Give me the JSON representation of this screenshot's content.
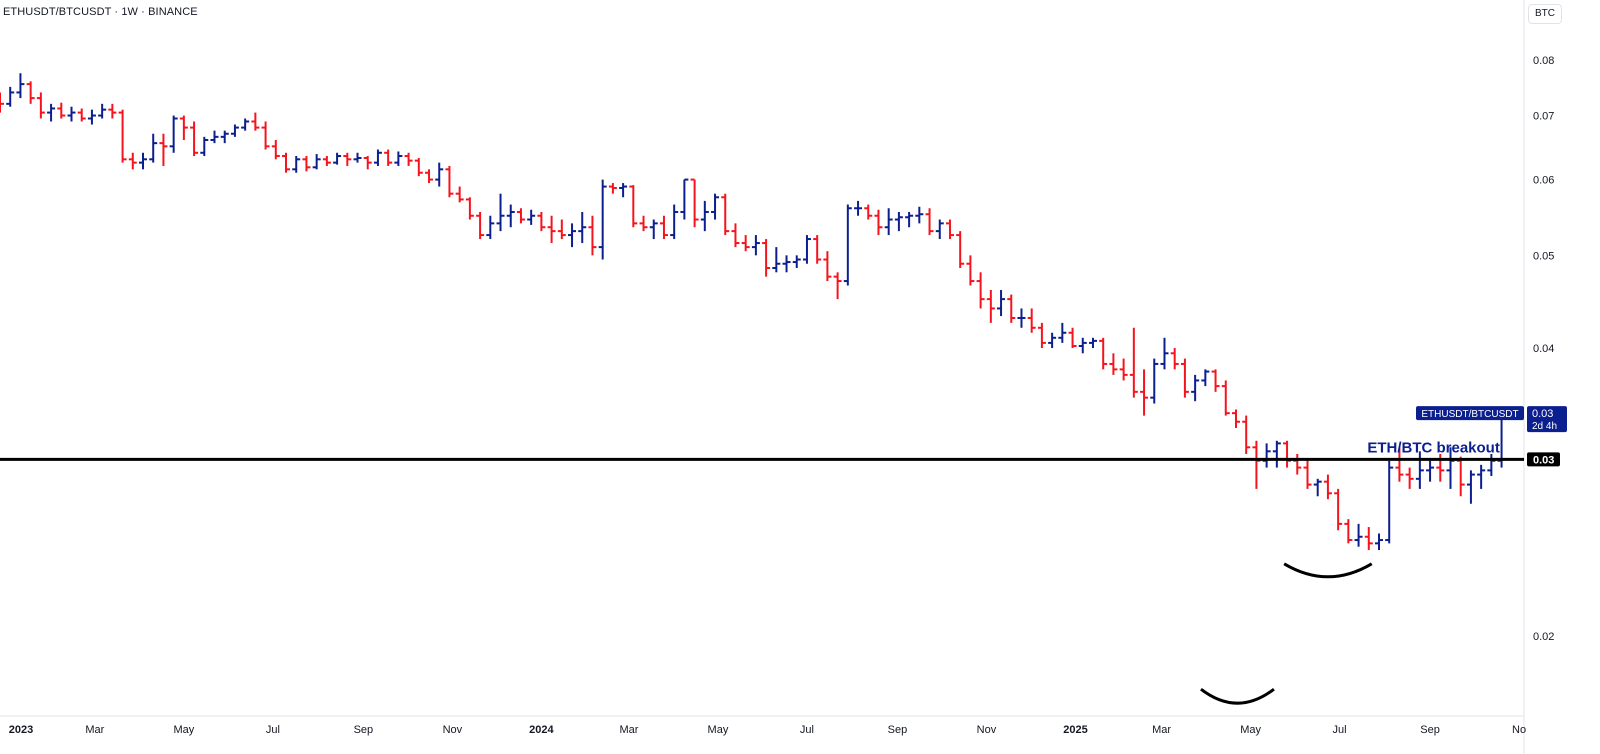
{
  "header": {
    "title": "ETHUSDT/BTCUSDT · 1W · BINANCE",
    "currency_button": "BTC"
  },
  "chart_data": {
    "type": "ohlc",
    "interval": "1W",
    "y_scale": "log",
    "ylim": [
      0.0165,
      0.086
    ],
    "xlim": [
      "2022-12-26",
      "2025-11-03"
    ],
    "y_ticks": [
      {
        "value": 0.08,
        "label": "0.08"
      },
      {
        "value": 0.07,
        "label": "0.07"
      },
      {
        "value": 0.06,
        "label": "0.06"
      },
      {
        "value": 0.05,
        "label": "0.05"
      },
      {
        "value": 0.04,
        "label": "0.04"
      },
      {
        "value": 0.02,
        "label": "0.02"
      }
    ],
    "x_ticks": [
      {
        "date": "2023-01-01",
        "label": "2023",
        "bold": true
      },
      {
        "date": "2023-03-01",
        "label": "Mar",
        "bold": false
      },
      {
        "date": "2023-05-01",
        "label": "May",
        "bold": false
      },
      {
        "date": "2023-07-01",
        "label": "Jul",
        "bold": false
      },
      {
        "date": "2023-09-01",
        "label": "Sep",
        "bold": false
      },
      {
        "date": "2023-11-01",
        "label": "Nov",
        "bold": false
      },
      {
        "date": "2024-01-01",
        "label": "2024",
        "bold": true
      },
      {
        "date": "2024-03-01",
        "label": "Mar",
        "bold": false
      },
      {
        "date": "2024-05-01",
        "label": "May",
        "bold": false
      },
      {
        "date": "2024-07-01",
        "label": "Jul",
        "bold": false
      },
      {
        "date": "2024-09-01",
        "label": "Sep",
        "bold": false
      },
      {
        "date": "2024-11-01",
        "label": "Nov",
        "bold": false
      },
      {
        "date": "2025-01-01",
        "label": "2025",
        "bold": true
      },
      {
        "date": "2025-03-01",
        "label": "Mar",
        "bold": false
      },
      {
        "date": "2025-05-01",
        "label": "May",
        "bold": false
      },
      {
        "date": "2025-07-01",
        "label": "Jul",
        "bold": false
      },
      {
        "date": "2025-09-01",
        "label": "Sep",
        "bold": false
      },
      {
        "date": "2025-11-01",
        "label": "No",
        "bold": false
      }
    ],
    "colors": {
      "up": "#0c1f8f",
      "down": "#f5141d",
      "line": "#000000"
    },
    "series_name": "ETHUSDT/BTCUSDT",
    "last_price_label": "0.03",
    "countdown_label": "2d 4h",
    "horizontal_line": {
      "value": 0.0306,
      "label": "0.03"
    },
    "annotation": "ETH/BTC breakout",
    "first_week": "2022-12-26",
    "bars": [
      [
        0.073,
        0.074,
        0.0705,
        0.072
      ],
      [
        0.072,
        0.075,
        0.0715,
        0.074
      ],
      [
        0.074,
        0.0775,
        0.073,
        0.0755
      ],
      [
        0.0755,
        0.076,
        0.072,
        0.073
      ],
      [
        0.073,
        0.074,
        0.0695,
        0.0705
      ],
      [
        0.0705,
        0.072,
        0.069,
        0.0712
      ],
      [
        0.0712,
        0.0722,
        0.0695,
        0.07
      ],
      [
        0.07,
        0.0715,
        0.069,
        0.0705
      ],
      [
        0.0705,
        0.0712,
        0.069,
        0.0695
      ],
      [
        0.0695,
        0.071,
        0.0685,
        0.07
      ],
      [
        0.07,
        0.072,
        0.0695,
        0.071
      ],
      [
        0.071,
        0.072,
        0.0695,
        0.0705
      ],
      [
        0.0705,
        0.071,
        0.0625,
        0.063
      ],
      [
        0.063,
        0.064,
        0.0615,
        0.0625
      ],
      [
        0.0625,
        0.064,
        0.0615,
        0.063
      ],
      [
        0.063,
        0.067,
        0.0625,
        0.0655
      ],
      [
        0.0655,
        0.067,
        0.062,
        0.065
      ],
      [
        0.065,
        0.07,
        0.064,
        0.0695
      ],
      [
        0.0695,
        0.07,
        0.066,
        0.068
      ],
      [
        0.068,
        0.069,
        0.0635,
        0.064
      ],
      [
        0.064,
        0.0665,
        0.0635,
        0.066
      ],
      [
        0.066,
        0.0675,
        0.0655,
        0.0665
      ],
      [
        0.0665,
        0.0675,
        0.0655,
        0.067
      ],
      [
        0.067,
        0.0685,
        0.0665,
        0.068
      ],
      [
        0.068,
        0.0695,
        0.0675,
        0.069
      ],
      [
        0.069,
        0.0705,
        0.0675,
        0.068
      ],
      [
        0.068,
        0.069,
        0.0645,
        0.065
      ],
      [
        0.065,
        0.066,
        0.063,
        0.0635
      ],
      [
        0.0635,
        0.064,
        0.061,
        0.0615
      ],
      [
        0.0615,
        0.0635,
        0.061,
        0.063
      ],
      [
        0.063,
        0.0635,
        0.0612,
        0.0618
      ],
      [
        0.0618,
        0.0638,
        0.0615,
        0.063
      ],
      [
        0.063,
        0.0635,
        0.062,
        0.0625
      ],
      [
        0.0625,
        0.064,
        0.0622,
        0.0635
      ],
      [
        0.0635,
        0.064,
        0.062,
        0.063
      ],
      [
        0.063,
        0.064,
        0.0625,
        0.0632
      ],
      [
        0.0632,
        0.0635,
        0.0615,
        0.0625
      ],
      [
        0.0625,
        0.0645,
        0.062,
        0.064
      ],
      [
        0.064,
        0.0645,
        0.062,
        0.0625
      ],
      [
        0.0625,
        0.0642,
        0.062,
        0.0635
      ],
      [
        0.0635,
        0.064,
        0.062,
        0.0628
      ],
      [
        0.0628,
        0.0632,
        0.0605,
        0.061
      ],
      [
        0.061,
        0.0615,
        0.0595,
        0.06
      ],
      [
        0.06,
        0.0625,
        0.059,
        0.0615
      ],
      [
        0.0615,
        0.062,
        0.0575,
        0.058
      ],
      [
        0.058,
        0.059,
        0.0568,
        0.0572
      ],
      [
        0.0572,
        0.0575,
        0.0545,
        0.055
      ],
      [
        0.055,
        0.0555,
        0.052,
        0.0525
      ],
      [
        0.0525,
        0.055,
        0.052,
        0.054
      ],
      [
        0.054,
        0.058,
        0.053,
        0.055
      ],
      [
        0.055,
        0.0565,
        0.0535,
        0.0555
      ],
      [
        0.0555,
        0.056,
        0.054,
        0.0545
      ],
      [
        0.0545,
        0.0558,
        0.0538,
        0.055
      ],
      [
        0.055,
        0.0555,
        0.053,
        0.0535
      ],
      [
        0.0535,
        0.055,
        0.0515,
        0.053
      ],
      [
        0.053,
        0.0545,
        0.052,
        0.0525
      ],
      [
        0.0525,
        0.054,
        0.051,
        0.053
      ],
      [
        0.053,
        0.0555,
        0.0515,
        0.0535
      ],
      [
        0.0535,
        0.055,
        0.05,
        0.051
      ],
      [
        0.051,
        0.06,
        0.0495,
        0.059
      ],
      [
        0.059,
        0.0595,
        0.058,
        0.0588
      ],
      [
        0.0588,
        0.0595,
        0.0575,
        0.059
      ],
      [
        0.059,
        0.0592,
        0.0535,
        0.054
      ],
      [
        0.054,
        0.055,
        0.053,
        0.0535
      ],
      [
        0.0535,
        0.0545,
        0.052,
        0.054
      ],
      [
        0.054,
        0.055,
        0.052,
        0.0525
      ],
      [
        0.0525,
        0.0565,
        0.052,
        0.0555
      ],
      [
        0.0555,
        0.06,
        0.0545,
        0.06
      ],
      [
        0.06,
        0.06,
        0.0535,
        0.0545
      ],
      [
        0.0545,
        0.057,
        0.053,
        0.0555
      ],
      [
        0.0555,
        0.058,
        0.0545,
        0.0575
      ],
      [
        0.0575,
        0.058,
        0.0525,
        0.053
      ],
      [
        0.053,
        0.054,
        0.051,
        0.0515
      ],
      [
        0.0515,
        0.0525,
        0.0505,
        0.051
      ],
      [
        0.051,
        0.0525,
        0.05,
        0.0515
      ],
      [
        0.0515,
        0.052,
        0.0475,
        0.0485
      ],
      [
        0.0485,
        0.051,
        0.048,
        0.049
      ],
      [
        0.049,
        0.05,
        0.048,
        0.0492
      ],
      [
        0.0492,
        0.05,
        0.0485,
        0.0495
      ],
      [
        0.0495,
        0.0525,
        0.049,
        0.052
      ],
      [
        0.052,
        0.0525,
        0.049,
        0.0495
      ],
      [
        0.0495,
        0.0505,
        0.047,
        0.0475
      ],
      [
        0.0475,
        0.048,
        0.045,
        0.047
      ],
      [
        0.047,
        0.0565,
        0.0465,
        0.056
      ],
      [
        0.056,
        0.057,
        0.055,
        0.056
      ],
      [
        0.056,
        0.0565,
        0.0545,
        0.055
      ],
      [
        0.055,
        0.0558,
        0.0525,
        0.0535
      ],
      [
        0.0535,
        0.056,
        0.0525,
        0.0545
      ],
      [
        0.0545,
        0.0555,
        0.053,
        0.0548
      ],
      [
        0.0548,
        0.0555,
        0.0535,
        0.055
      ],
      [
        0.055,
        0.0562,
        0.054,
        0.0552
      ],
      [
        0.0552,
        0.056,
        0.0525,
        0.053
      ],
      [
        0.053,
        0.0545,
        0.052,
        0.054
      ],
      [
        0.054,
        0.0545,
        0.052,
        0.0525
      ],
      [
        0.0525,
        0.053,
        0.0485,
        0.049
      ],
      [
        0.049,
        0.05,
        0.0465,
        0.047
      ],
      [
        0.047,
        0.048,
        0.044,
        0.045
      ],
      [
        0.045,
        0.046,
        0.0425,
        0.044
      ],
      [
        0.044,
        0.046,
        0.0432,
        0.045
      ],
      [
        0.045,
        0.0455,
        0.0425,
        0.043
      ],
      [
        0.043,
        0.044,
        0.042,
        0.043
      ],
      [
        0.043,
        0.044,
        0.0415,
        0.042
      ],
      [
        0.042,
        0.0425,
        0.04,
        0.0405
      ],
      [
        0.0405,
        0.0415,
        0.04,
        0.041
      ],
      [
        0.041,
        0.0425,
        0.0405,
        0.0415
      ],
      [
        0.0415,
        0.042,
        0.04,
        0.0402
      ],
      [
        0.0402,
        0.041,
        0.0395,
        0.0405
      ],
      [
        0.0405,
        0.041,
        0.04,
        0.0407
      ],
      [
        0.0407,
        0.041,
        0.038,
        0.0385
      ],
      [
        0.0385,
        0.0395,
        0.0375,
        0.038
      ],
      [
        0.038,
        0.039,
        0.037,
        0.0375
      ],
      [
        0.0375,
        0.042,
        0.0355,
        0.036
      ],
      [
        0.036,
        0.038,
        0.034,
        0.0355
      ],
      [
        0.0355,
        0.039,
        0.035,
        0.0385
      ],
      [
        0.0385,
        0.041,
        0.038,
        0.0395
      ],
      [
        0.0395,
        0.04,
        0.038,
        0.0385
      ],
      [
        0.0385,
        0.039,
        0.0355,
        0.036
      ],
      [
        0.036,
        0.0375,
        0.0352,
        0.037
      ],
      [
        0.037,
        0.038,
        0.0365,
        0.0378
      ],
      [
        0.0378,
        0.038,
        0.036,
        0.0365
      ],
      [
        0.0365,
        0.037,
        0.034,
        0.0342
      ],
      [
        0.0342,
        0.0345,
        0.033,
        0.0335
      ],
      [
        0.0335,
        0.034,
        0.031,
        0.0315
      ],
      [
        0.0315,
        0.032,
        0.0285,
        0.0305
      ],
      [
        0.0305,
        0.0318,
        0.03,
        0.0312
      ],
      [
        0.0312,
        0.032,
        0.03,
        0.0318
      ],
      [
        0.0318,
        0.032,
        0.03,
        0.0305
      ],
      [
        0.0305,
        0.031,
        0.0295,
        0.03
      ],
      [
        0.03,
        0.0305,
        0.0285,
        0.0288
      ],
      [
        0.0288,
        0.0292,
        0.028,
        0.029
      ],
      [
        0.029,
        0.0295,
        0.0278,
        0.0282
      ],
      [
        0.0282,
        0.0285,
        0.0258,
        0.0262
      ],
      [
        0.0262,
        0.0265,
        0.025,
        0.0252
      ],
      [
        0.0252,
        0.0262,
        0.0248,
        0.0254
      ],
      [
        0.0254,
        0.026,
        0.0246,
        0.025
      ],
      [
        0.025,
        0.0256,
        0.0246,
        0.0252
      ],
      [
        0.0252,
        0.0305,
        0.025,
        0.03
      ],
      [
        0.03,
        0.0315,
        0.029,
        0.0295
      ],
      [
        0.0295,
        0.03,
        0.0285,
        0.0292
      ],
      [
        0.0292,
        0.0312,
        0.0285,
        0.0298
      ],
      [
        0.0298,
        0.0305,
        0.029,
        0.03
      ],
      [
        0.03,
        0.031,
        0.029,
        0.0298
      ],
      [
        0.0298,
        0.0315,
        0.0285,
        0.0305
      ],
      [
        0.0305,
        0.0308,
        0.028,
        0.0288
      ],
      [
        0.0288,
        0.0298,
        0.0275,
        0.0295
      ],
      [
        0.0295,
        0.0302,
        0.0285,
        0.0298
      ],
      [
        0.0298,
        0.031,
        0.0294,
        0.0305
      ],
      [
        0.0305,
        0.0345,
        0.03,
        0.0342
      ]
    ]
  }
}
